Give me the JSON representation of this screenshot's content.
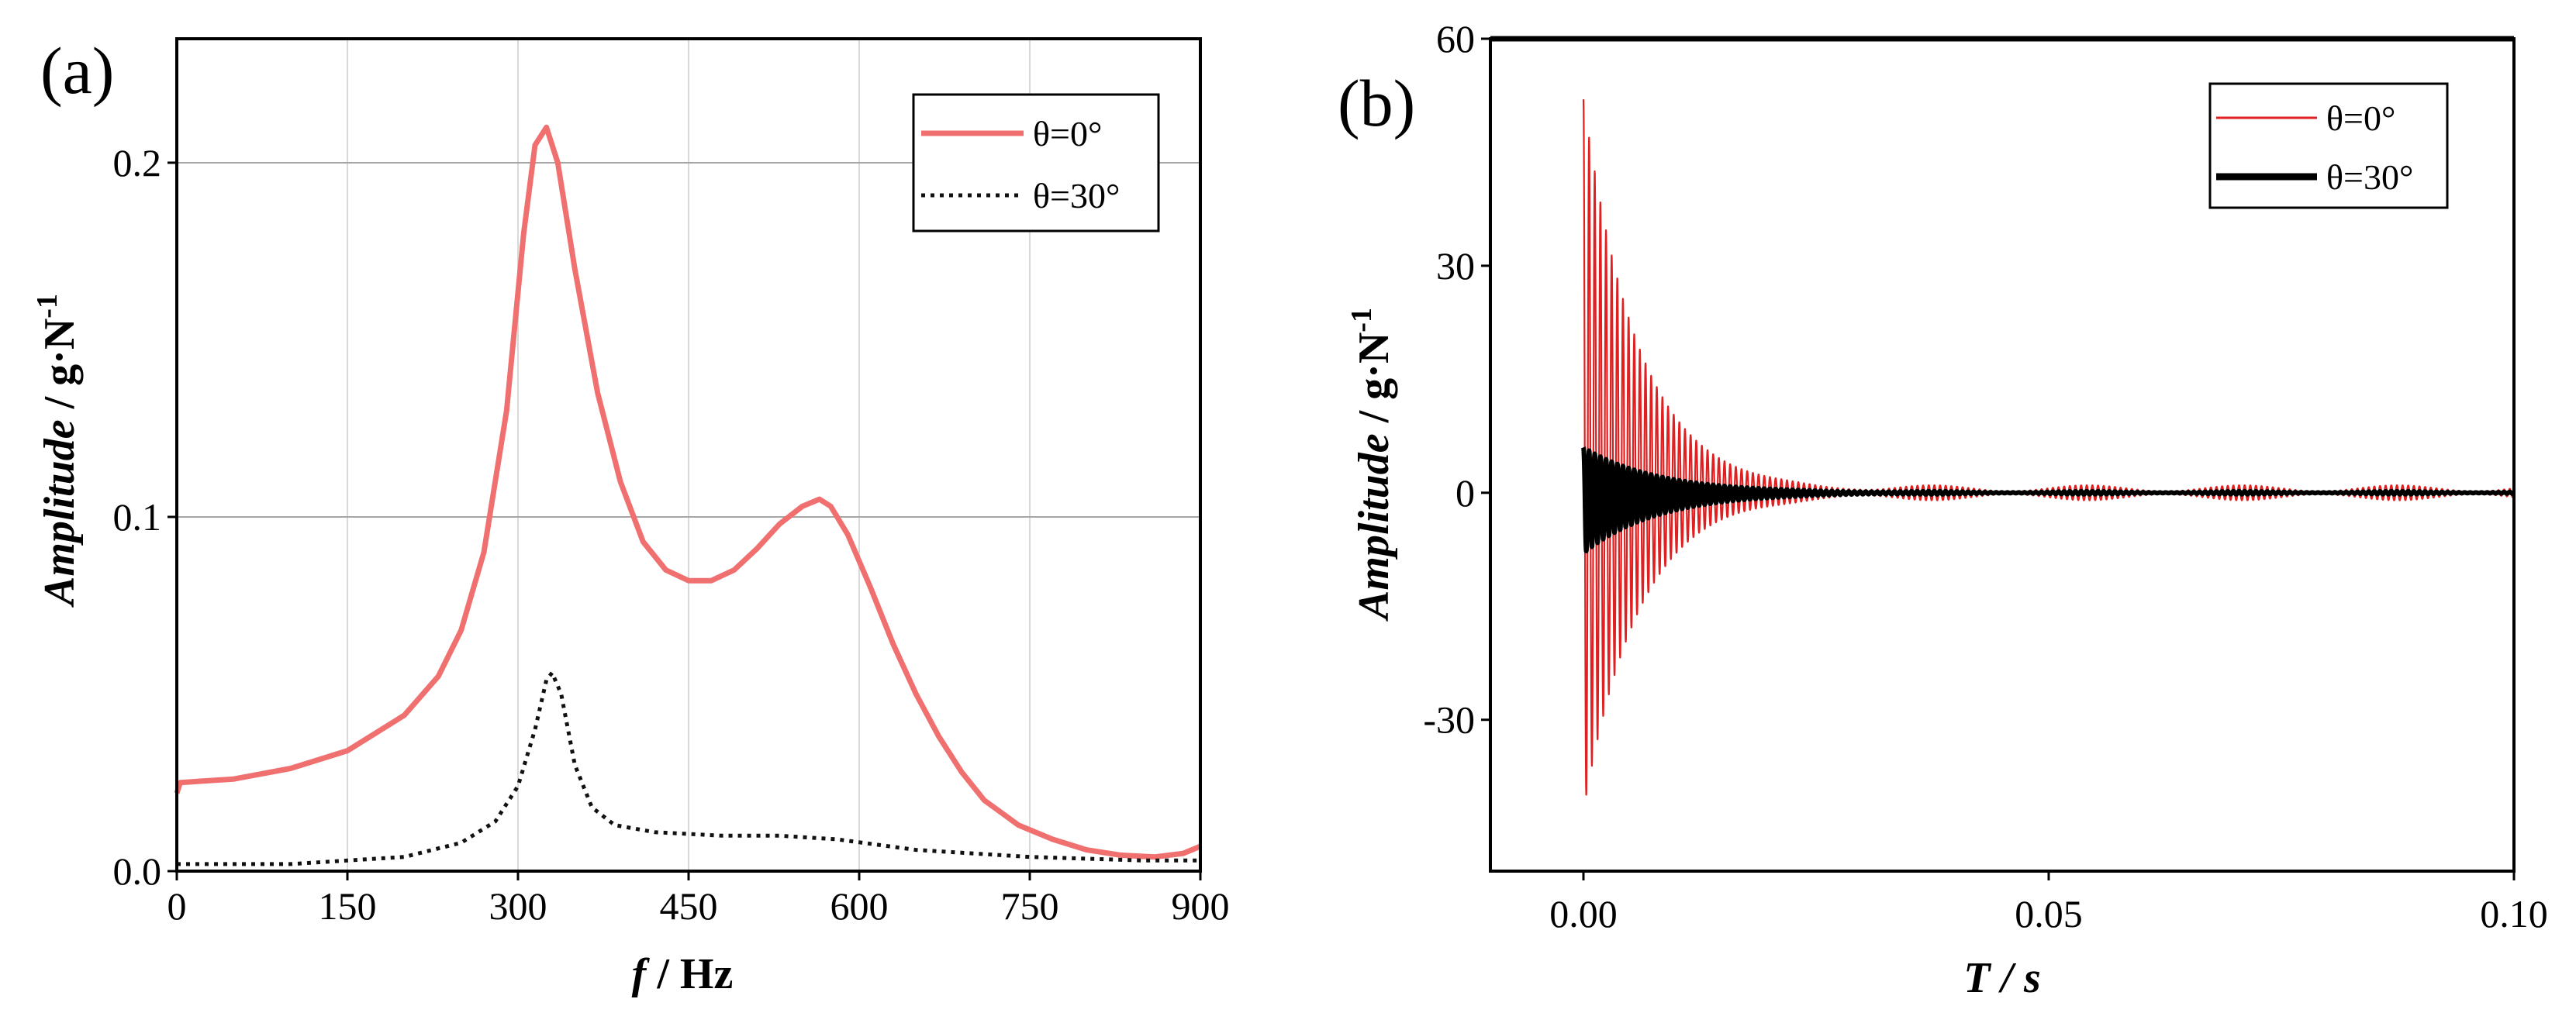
{
  "chart_data": [
    {
      "panel_label": "(a)",
      "type": "line",
      "xlabel": {
        "var": "f",
        "sep": " / ",
        "unit": "Hz"
      },
      "ylabel": {
        "var": "Amplitude",
        "sep": " / ",
        "unit": "g·N",
        "sup": "-1"
      },
      "xlim": [
        0,
        900
      ],
      "ylim": [
        0,
        0.235
      ],
      "xticks": [
        0,
        150,
        300,
        450,
        600,
        750,
        900
      ],
      "xtick_labels": [
        "0",
        "150",
        "300",
        "450",
        "600",
        "750",
        "900"
      ],
      "yticks": [
        0,
        0.1,
        0.2
      ],
      "ytick_labels": [
        "0.0",
        "0.1",
        "0.2"
      ],
      "grid": true,
      "legend": "top-right",
      "series": [
        {
          "name": "θ=0°",
          "color": "#f07070",
          "style": "solid",
          "points": [
            [
              0,
              0.022
            ],
            [
              3,
              0.025
            ],
            [
              50,
              0.026
            ],
            [
              100,
              0.029
            ],
            [
              150,
              0.034
            ],
            [
              200,
              0.044
            ],
            [
              230,
              0.055
            ],
            [
              250,
              0.068
            ],
            [
              270,
              0.09
            ],
            [
              290,
              0.13
            ],
            [
              305,
              0.18
            ],
            [
              315,
              0.205
            ],
            [
              325,
              0.21
            ],
            [
              335,
              0.2
            ],
            [
              350,
              0.17
            ],
            [
              370,
              0.135
            ],
            [
              390,
              0.11
            ],
            [
              410,
              0.093
            ],
            [
              430,
              0.085
            ],
            [
              450,
              0.082
            ],
            [
              470,
              0.082
            ],
            [
              490,
              0.085
            ],
            [
              510,
              0.091
            ],
            [
              530,
              0.098
            ],
            [
              550,
              0.103
            ],
            [
              565,
              0.105
            ],
            [
              575,
              0.103
            ],
            [
              590,
              0.095
            ],
            [
              610,
              0.08
            ],
            [
              630,
              0.064
            ],
            [
              650,
              0.05
            ],
            [
              670,
              0.038
            ],
            [
              690,
              0.028
            ],
            [
              710,
              0.02
            ],
            [
              740,
              0.013
            ],
            [
              770,
              0.009
            ],
            [
              800,
              0.006
            ],
            [
              830,
              0.0045
            ],
            [
              860,
              0.004
            ],
            [
              885,
              0.005
            ],
            [
              900,
              0.007
            ]
          ]
        },
        {
          "name": "θ=30°",
          "color": "#111111",
          "style": "dotted",
          "points": [
            [
              0,
              0.002
            ],
            [
              100,
              0.002
            ],
            [
              150,
              0.003
            ],
            [
              200,
              0.004
            ],
            [
              250,
              0.008
            ],
            [
              280,
              0.014
            ],
            [
              300,
              0.024
            ],
            [
              315,
              0.04
            ],
            [
              325,
              0.054
            ],
            [
              330,
              0.056
            ],
            [
              338,
              0.05
            ],
            [
              350,
              0.03
            ],
            [
              365,
              0.018
            ],
            [
              385,
              0.013
            ],
            [
              420,
              0.011
            ],
            [
              480,
              0.01
            ],
            [
              530,
              0.01
            ],
            [
              580,
              0.009
            ],
            [
              650,
              0.006
            ],
            [
              750,
              0.004
            ],
            [
              850,
              0.003
            ],
            [
              900,
              0.003
            ]
          ]
        }
      ]
    },
    {
      "panel_label": "(b)",
      "type": "line",
      "xlabel": {
        "var": "T",
        "sep": " / ",
        "unit": "s"
      },
      "ylabel": {
        "var": "Amplitude",
        "sep": " / ",
        "unit": "g·N",
        "sup": "-1"
      },
      "xlim": [
        -0.01,
        0.1
      ],
      "ylim": [
        -50,
        60
      ],
      "xticks": [
        0,
        0.05,
        0.1
      ],
      "xtick_labels": [
        "0.00",
        "0.05",
        "0.10"
      ],
      "yticks": [
        -30,
        0,
        30,
        60
      ],
      "ytick_labels": [
        "-30",
        "0",
        "30",
        "60"
      ],
      "grid": false,
      "legend": "top-right",
      "series": [
        {
          "name": "θ=0°",
          "color": "#e02020",
          "style": "thin",
          "signal": {
            "t_start": 0,
            "t_end": 0.1,
            "peak_pos": 52,
            "peak_neg": -42,
            "decay_time": 0.006,
            "residual": 1,
            "freq_hz": 1650
          }
        },
        {
          "name": "θ=30°",
          "color": "#000000",
          "style": "thick",
          "signal": {
            "t_start": 0,
            "t_end": 0.1,
            "peak_pos": 6,
            "peak_neg": -8,
            "decay_time": 0.008,
            "residual": 0.2,
            "freq_hz": 1650
          }
        }
      ]
    }
  ]
}
